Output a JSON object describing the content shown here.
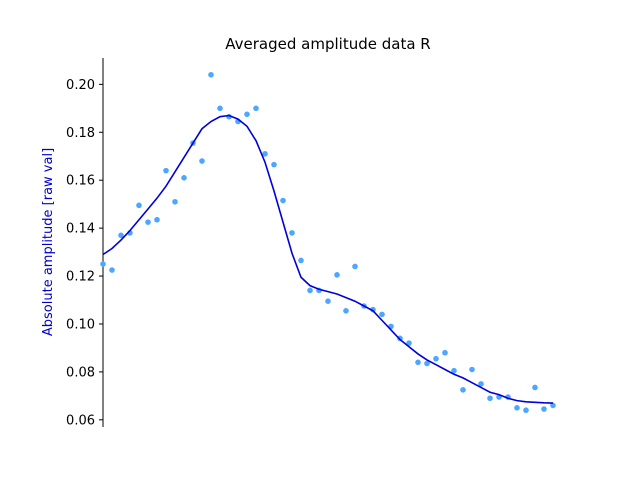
{
  "chart_data": {
    "type": "scatter",
    "title": "Averaged amplitude data R",
    "xlabel": "",
    "ylabel": "Absolute amplitude [raw val]",
    "ylabel_color": "#0000cc",
    "ylim": [
      0.057,
      0.211
    ],
    "xlim": [
      0,
      50
    ],
    "yticks": [
      0.06,
      0.08,
      0.1,
      0.12,
      0.14,
      0.16,
      0.18,
      0.2
    ],
    "ytick_labels": [
      "0.06",
      "0.08",
      "0.10",
      "0.12",
      "0.14",
      "0.16",
      "0.18",
      "0.20"
    ],
    "x_axis_visible": false,
    "grid": false,
    "series": [
      {
        "type": "scatter",
        "color": "#4da6ff",
        "x": [
          0,
          1,
          2,
          3,
          4,
          5,
          6,
          7,
          8,
          9,
          10,
          11,
          12,
          13,
          14,
          15,
          16,
          17,
          18,
          19,
          20,
          21,
          22,
          23,
          24,
          25,
          26,
          27,
          28,
          29,
          30,
          31,
          32,
          33,
          34,
          35,
          36,
          37,
          38,
          39,
          40,
          41,
          42,
          43,
          44,
          45,
          46,
          47,
          48,
          49,
          50
        ],
        "y": [
          0.125,
          0.1225,
          0.137,
          0.138,
          0.1495,
          0.1425,
          0.1435,
          0.164,
          0.151,
          0.161,
          0.1755,
          0.168,
          0.204,
          0.19,
          0.1865,
          0.1845,
          0.1875,
          0.19,
          0.171,
          0.1665,
          0.1515,
          0.138,
          0.1265,
          0.114,
          0.114,
          0.1095,
          0.1205,
          0.1055,
          0.124,
          0.1075,
          0.106,
          0.104,
          0.099,
          0.094,
          0.092,
          0.084,
          0.0835,
          0.0855,
          0.088,
          0.0805,
          0.0725,
          0.081,
          0.075,
          0.069,
          0.0695,
          0.0695,
          0.065,
          0.064,
          0.0735,
          0.0645,
          0.066
        ]
      },
      {
        "type": "line",
        "color": "#0000dd",
        "x": [
          0,
          1,
          2,
          3,
          4,
          5,
          6,
          7,
          8,
          9,
          10,
          11,
          12,
          13,
          14,
          15,
          16,
          17,
          18,
          19,
          20,
          21,
          22,
          23,
          24,
          25,
          26,
          27,
          28,
          29,
          30,
          31,
          32,
          33,
          34,
          35,
          36,
          37,
          38,
          39,
          40,
          41,
          42,
          43,
          44,
          45,
          46,
          47,
          48,
          49,
          50
        ],
        "y": [
          0.129,
          0.1315,
          0.135,
          0.139,
          0.1435,
          0.148,
          0.1525,
          0.1575,
          0.1635,
          0.1695,
          0.1755,
          0.1815,
          0.1845,
          0.1865,
          0.187,
          0.1855,
          0.1825,
          0.1765,
          0.1675,
          0.1555,
          0.1425,
          0.1295,
          0.1195,
          0.116,
          0.1145,
          0.1135,
          0.1125,
          0.111,
          0.1095,
          0.1075,
          0.1055,
          0.1015,
          0.0975,
          0.0935,
          0.0905,
          0.0875,
          0.085,
          0.083,
          0.081,
          0.079,
          0.0775,
          0.0755,
          0.0735,
          0.0715,
          0.0705,
          0.069,
          0.068,
          0.0675,
          0.0673,
          0.0671,
          0.067
        ]
      }
    ]
  }
}
